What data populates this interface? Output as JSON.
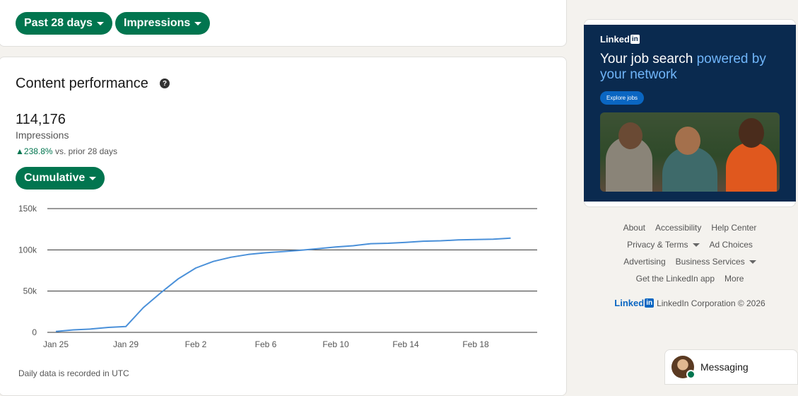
{
  "filters": {
    "period_label": "Past 28 days",
    "metric_label": "Impressions"
  },
  "content": {
    "title": "Content performance",
    "help_glyph": "?",
    "total": "114,176",
    "metric_name": "Impressions",
    "delta_value": "238.8%",
    "delta_suffix": "vs. prior 28 days",
    "mode_label": "Cumulative",
    "note": "Daily data is recorded in UTC"
  },
  "chart_data": {
    "type": "line",
    "x_ticks": [
      "Jan 25",
      "Jan 29",
      "Feb 2",
      "Feb 6",
      "Feb 10",
      "Feb 14",
      "Feb 18"
    ],
    "y_ticks": [
      "0",
      "50k",
      "100k",
      "150k"
    ],
    "ylim": [
      0,
      150000
    ],
    "grid": true,
    "series": [
      {
        "color": "#4a90d9",
        "x": [
          "Jan 25",
          "Jan 26",
          "Jan 27",
          "Jan 28",
          "Jan 29",
          "Jan 30",
          "Jan 31",
          "Feb 1",
          "Feb 2",
          "Feb 3",
          "Feb 4",
          "Feb 5",
          "Feb 6",
          "Feb 7",
          "Feb 8",
          "Feb 9",
          "Feb 10",
          "Feb 11",
          "Feb 12",
          "Feb 13",
          "Feb 14",
          "Feb 15",
          "Feb 16",
          "Feb 17",
          "Feb 18",
          "Feb 19",
          "Feb 20",
          "Feb 21"
        ],
        "values": [
          1000,
          3000,
          4000,
          6000,
          7000,
          30000,
          48000,
          65000,
          78000,
          86000,
          91000,
          94500,
          96500,
          98000,
          99500,
          101500,
          103500,
          105000,
          107500,
          108000,
          109000,
          110500,
          111000,
          112000,
          112500,
          113000,
          114176,
          null
        ]
      }
    ]
  },
  "ad": {
    "brand": "Linked",
    "brand_in": "in",
    "headline_plain": "Your job search ",
    "headline_highlight": "powered by your network",
    "cta": "Explore jobs"
  },
  "footer": {
    "row1": [
      "About",
      "Accessibility",
      "Help Center"
    ],
    "row2": [
      "Privacy & Terms",
      "Ad Choices"
    ],
    "row3": [
      "Advertising",
      "Business Services"
    ],
    "row4": [
      "Get the LinkedIn app",
      "More"
    ],
    "logo_text": "Linked",
    "logo_in": "in",
    "copyright": "LinkedIn Corporation © 2026"
  },
  "messaging": {
    "label": "Messaging"
  },
  "icons": [
    "help-icon",
    "caret-down-icon",
    "linkedin-logo",
    "messaging-avatar"
  ]
}
